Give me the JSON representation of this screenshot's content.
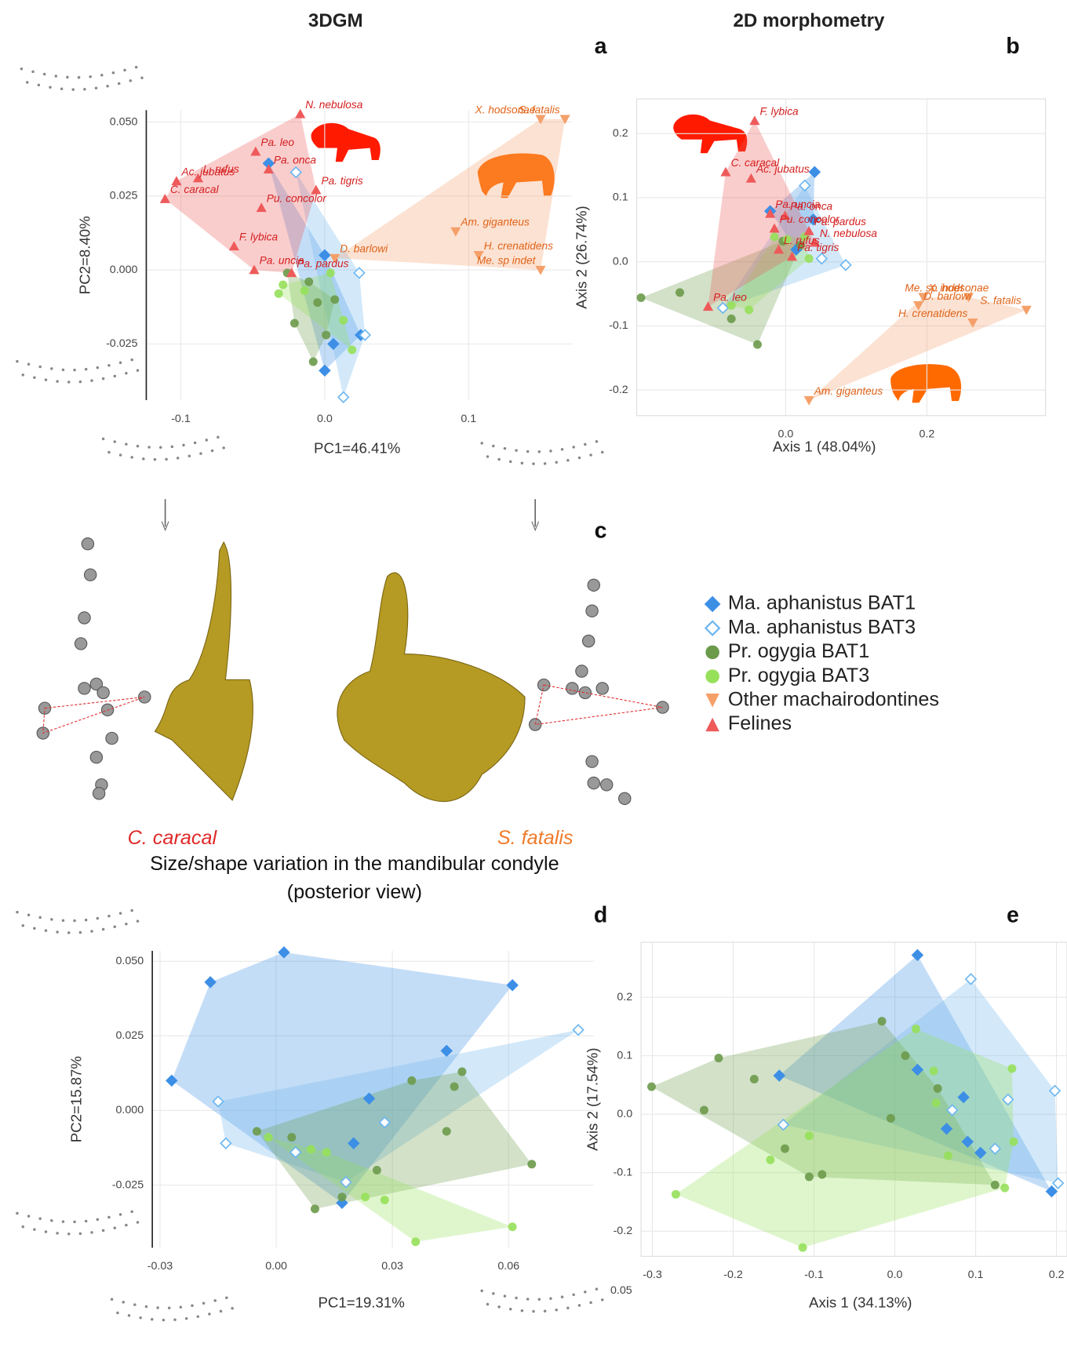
{
  "texts": {
    "col_3dgm": "3DGM",
    "col_2d": "2D morphometry",
    "panel_c": "c",
    "left_species": "C. caracal",
    "right_species": "S. fatalis",
    "caption_1": "Size/shape variation in the mandibular condyle",
    "caption_2": "(posterior view)",
    "stray_tick": "0.05"
  },
  "chart_data": [
    {
      "type": "scatter",
      "panel": "a",
      "xlabel": "PC1=46.41%",
      "ylabel": "PC2=8.40%",
      "xlim": [
        -0.124,
        0.172
      ],
      "ylim": [
        -0.044,
        0.054
      ],
      "xticks": [
        -0.1,
        {
          "value": 0,
          "label": "0.0"
        },
        0.1
      ],
      "yticks": [
        -0.025,
        {
          "value": 0,
          "label": "0.000"
        },
        0.025,
        {
          "value": 0.05,
          "label": "0.050"
        }
      ],
      "grid": true,
      "hulls": true,
      "series": [
        {
          "name": "Ma. aphanistus BAT1",
          "color": "#3d8fe6",
          "marker": "diamond",
          "x": [
            -0.039,
            0.0,
            0.025,
            0.0,
            0.006
          ],
          "values": [
            0.036,
            0.005,
            -0.022,
            -0.034,
            -0.025
          ]
        },
        {
          "name": "Ma. aphanistus BAT3",
          "color": "#6cb6f0",
          "marker": "open-diamond",
          "x": [
            -0.02,
            0.024,
            0.028,
            0.013
          ],
          "values": [
            0.033,
            -0.001,
            -0.022,
            -0.043
          ]
        },
        {
          "name": "Pr. ogygia BAT1",
          "color": "#6b9a4a",
          "marker": "circle",
          "x": [
            -0.026,
            -0.011,
            -0.005,
            -0.021,
            -0.008,
            0.007,
            0.001
          ],
          "values": [
            -0.001,
            -0.004,
            -0.011,
            -0.018,
            -0.031,
            -0.01,
            -0.022
          ]
        },
        {
          "name": "Pr. ogygia BAT3",
          "color": "#96e05a",
          "marker": "circle",
          "x": [
            -0.029,
            -0.032,
            -0.014,
            0.013,
            0.019,
            0.004
          ],
          "values": [
            -0.005,
            -0.008,
            -0.007,
            -0.017,
            -0.027,
            -0.001
          ]
        },
        {
          "name": "Other machairodontines",
          "color": "#f5a06a",
          "label_color": "#e0641a",
          "marker": "triangle-down",
          "x": [
            0.15,
            0.167,
            0.091,
            0.107,
            0.15,
            0.007
          ],
          "values": [
            0.051,
            0.051,
            0.013,
            0.005,
            0.0,
            0.004
          ],
          "point_labels": [
            "X. hodsonae",
            "S. fatalis",
            "Am. giganteus",
            "H. crenatidens",
            "Me. sp indet",
            "D. barlowi"
          ]
        },
        {
          "name": "Felines",
          "color": "#ee5a5a",
          "label_color": "#d41e1e",
          "marker": "triangle-up",
          "x": [
            -0.017,
            -0.048,
            -0.088,
            -0.103,
            -0.111,
            -0.039,
            -0.006,
            -0.044,
            -0.063,
            -0.049,
            -0.023
          ],
          "values": [
            0.0527,
            0.04,
            0.031,
            0.03,
            0.024,
            0.034,
            0.027,
            0.021,
            0.008,
            0.0,
            -0.001
          ],
          "point_labels": [
            "N. nebulosa",
            "Pa. leo",
            "L. rufus",
            "Ac. jubatus",
            "C. caracal",
            "Pa. onca",
            "Pa. tigris",
            "Pu. concolor",
            "F. lybica",
            "Pa. uncia",
            "Pa. pardus"
          ]
        }
      ]
    },
    {
      "type": "scatter",
      "panel": "b",
      "xlabel": "Axis 1 (48.04%)",
      "ylabel": "Axis 2 (26.74%)",
      "xlim": [
        -0.211,
        0.368
      ],
      "ylim": [
        -0.24,
        0.254
      ],
      "xticks": [
        {
          "value": 0,
          "label": "0.0"
        },
        0.2
      ],
      "yticks": [
        -0.2,
        -0.1,
        {
          "value": 0,
          "label": "0.0"
        },
        0.1,
        0.2
      ],
      "grid": true,
      "hulls": true,
      "series": [
        {
          "color": "#3d8fe6",
          "marker": "diamond",
          "x": [
            0.041,
            0.039,
            -0.022,
            0.015
          ],
          "values": [
            0.14,
            0.066,
            0.079,
            0.019
          ]
        },
        {
          "color": "#6cb6f0",
          "marker": "open-diamond",
          "x": [
            0.027,
            0.085,
            -0.089,
            0.051
          ],
          "values": [
            0.119,
            -0.005,
            -0.072,
            0.005
          ]
        },
        {
          "color": "#6b9a4a",
          "marker": "circle",
          "x": [
            -0.205,
            -0.04,
            0.021,
            -0.004,
            -0.15,
            -0.077
          ],
          "values": [
            -0.056,
            -0.129,
            0.026,
            0.032,
            -0.048,
            -0.089
          ]
        },
        {
          "color": "#96e05a",
          "marker": "circle",
          "x": [
            0.002,
            -0.016,
            0.033,
            -0.077,
            0.027,
            -0.052
          ],
          "values": [
            0.035,
            0.039,
            0.005,
            -0.068,
            0.039,
            -0.075
          ]
        },
        {
          "color": "#f5a06a",
          "label_color": "#e0641a",
          "marker": "triangle-down",
          "x": [
            0.195,
            0.259,
            0.341,
            0.188,
            0.265,
            0.033
          ],
          "values": [
            -0.055,
            -0.055,
            -0.075,
            -0.068,
            -0.095,
            -0.216
          ],
          "point_labels": [
            "X. hodsonae",
            "Me. sp indet",
            "S. fatalis",
            "D. barlowi",
            "H. crenatidens",
            "Am. giganteus"
          ]
        },
        {
          "color": "#ee5a5a",
          "label_color": "#d41e1e",
          "marker": "triangle-up",
          "x": [
            -0.044,
            -0.085,
            -0.049,
            -0.022,
            -0.001,
            -0.016,
            0.033,
            0.041,
            -0.01,
            0.009,
            -0.11
          ],
          "values": [
            0.22,
            0.14,
            0.13,
            0.075,
            0.072,
            0.052,
            0.048,
            0.03,
            0.019,
            0.008,
            -0.07
          ],
          "point_labels": [
            "F. lybica",
            "C. caracal",
            "Ac. jubatus",
            "Pa. uncia",
            "Pa. onca",
            "Pu. concolor",
            "Pa. pardus",
            "N. nebulosa",
            "L. rufus",
            "Pa. tigris",
            "Pa. leo"
          ]
        }
      ]
    },
    {
      "type": "scatter",
      "panel": "d",
      "xlabel": "PC1=19.31%",
      "ylabel": "PC2=15.87%",
      "xlim": [
        -0.032,
        0.082
      ],
      "ylim": [
        -0.046,
        0.0535
      ],
      "xticks": [
        -0.03,
        {
          "value": 0,
          "label": "0.00"
        },
        0.03,
        0.06
      ],
      "yticks": [
        -0.025,
        {
          "value": 0,
          "label": "0.000"
        },
        0.025,
        {
          "value": 0.05,
          "label": "0.050"
        }
      ],
      "grid": true,
      "hulls": true,
      "series": [
        {
          "color": "#3d8fe6",
          "marker": "diamond",
          "x": [
            0.002,
            -0.017,
            0.061,
            0.044,
            -0.027,
            0.024,
            0.02,
            0.017
          ],
          "values": [
            0.053,
            0.043,
            0.042,
            0.02,
            0.01,
            0.004,
            -0.011,
            -0.031
          ]
        },
        {
          "color": "#6cb6f0",
          "marker": "open-diamond",
          "x": [
            0.078,
            -0.015,
            0.028,
            -0.013,
            0.005,
            0.018
          ],
          "values": [
            0.027,
            0.003,
            -0.004,
            -0.011,
            -0.014,
            -0.024
          ]
        },
        {
          "color": "#6b9a4a",
          "marker": "circle",
          "x": [
            0.048,
            0.046,
            0.035,
            0.044,
            0.066,
            0.004,
            -0.005,
            0.026,
            0.017,
            0.01
          ],
          "values": [
            0.013,
            0.008,
            0.01,
            -0.007,
            -0.018,
            -0.009,
            -0.007,
            -0.02,
            -0.029,
            -0.033
          ]
        },
        {
          "color": "#96e05a",
          "marker": "circle",
          "x": [
            0.009,
            0.013,
            0.023,
            0.028,
            0.036,
            0.061,
            -0.002
          ],
          "values": [
            -0.013,
            -0.014,
            -0.029,
            -0.03,
            -0.044,
            -0.039,
            -0.009
          ]
        }
      ]
    },
    {
      "type": "scatter",
      "panel": "e",
      "xlabel": "Axis 1 (34.13%)",
      "ylabel": "Axis 2 (17.54%)",
      "xlim": [
        -0.314,
        0.213
      ],
      "ylim": [
        -0.243,
        0.294
      ],
      "xticks": [
        -0.3,
        -0.2,
        -0.1,
        {
          "value": 0,
          "label": "0.0"
        },
        0.1,
        0.2
      ],
      "yticks": [
        -0.2,
        -0.1,
        {
          "value": 0,
          "label": "0.0"
        },
        0.1,
        0.2
      ],
      "grid": true,
      "hulls": true,
      "series": [
        {
          "color": "#3d8fe6",
          "marker": "diamond",
          "x": [
            0.028,
            -0.143,
            0.028,
            0.085,
            0.064,
            0.09,
            0.106,
            0.194
          ],
          "values": [
            0.272,
            0.066,
            0.076,
            0.029,
            -0.025,
            -0.047,
            -0.066,
            -0.132
          ]
        },
        {
          "color": "#6cb6f0",
          "marker": "open-diamond",
          "x": [
            0.094,
            0.198,
            0.14,
            -0.138,
            0.071,
            0.124,
            0.202
          ],
          "values": [
            0.231,
            0.04,
            0.025,
            -0.018,
            0.007,
            -0.059,
            -0.118
          ]
        },
        {
          "color": "#6b9a4a",
          "marker": "circle",
          "x": [
            -0.301,
            -0.218,
            -0.174,
            -0.236,
            -0.016,
            0.013,
            -0.136,
            -0.106,
            -0.09,
            0.053,
            0.124,
            -0.005
          ],
          "values": [
            0.047,
            0.096,
            0.06,
            0.007,
            0.159,
            0.1,
            -0.059,
            -0.107,
            -0.103,
            0.044,
            -0.121,
            -0.007
          ]
        },
        {
          "color": "#96e05a",
          "marker": "circle",
          "x": [
            -0.271,
            -0.154,
            -0.106,
            -0.114,
            0.026,
            0.048,
            0.145,
            0.147,
            0.136,
            0.066,
            0.051
          ],
          "values": [
            -0.137,
            -0.078,
            -0.037,
            -0.228,
            0.146,
            0.074,
            0.078,
            -0.047,
            -0.126,
            -0.071,
            0.019
          ]
        }
      ]
    }
  ]
}
